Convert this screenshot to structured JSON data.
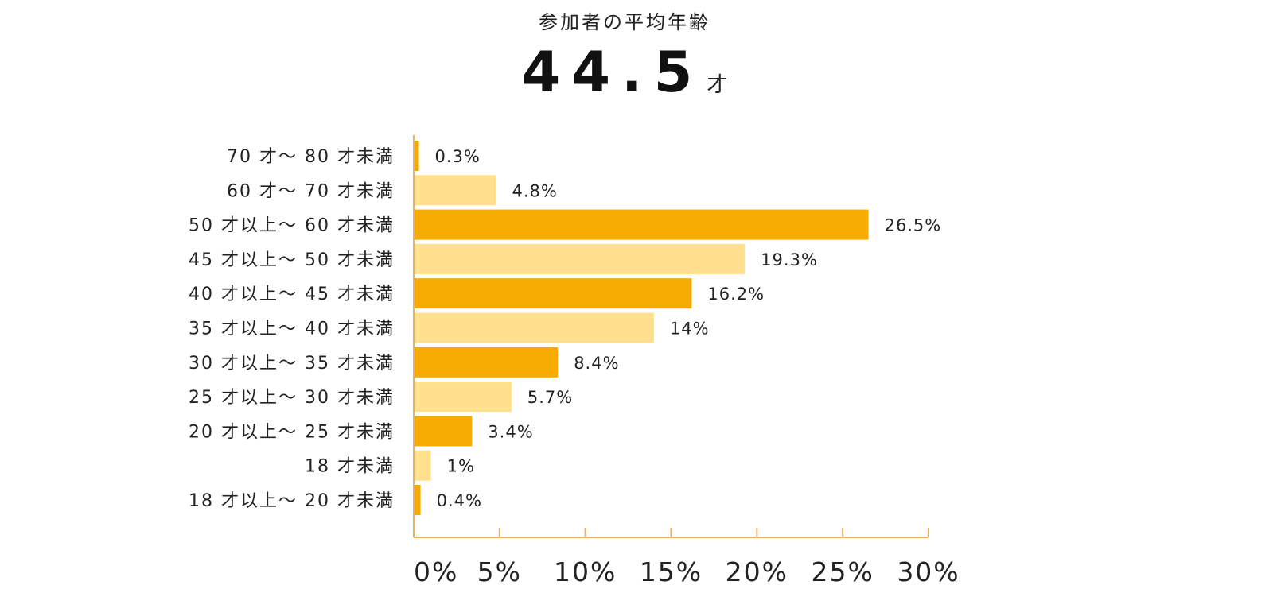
{
  "header": {
    "title": "参加者の平均年齢",
    "average_value": "44.5",
    "average_unit": "才"
  },
  "colors": {
    "dark": "#f5ab00",
    "light": "#ffe08c",
    "axis": "#e8b060"
  },
  "chart_data": {
    "type": "bar",
    "orientation": "horizontal",
    "categories": [
      "70 才～ 80 才未満",
      "60 才～ 70 才未満",
      "50 才以上～ 60 才未満",
      "45 才以上～ 50 才未満",
      "40 才以上～ 45 才未満",
      "35 才以上～ 40 才未満",
      "30 才以上～ 35 才未満",
      "25 才以上～ 30 才未満",
      "20 才以上～ 25 才未満",
      "18 才未満",
      "18 才以上～ 20 才未満"
    ],
    "values": [
      0.3,
      4.8,
      26.5,
      19.3,
      16.2,
      14,
      8.4,
      5.7,
      3.4,
      1,
      0.4
    ],
    "value_labels": [
      "0.3%",
      "4.8%",
      "26.5%",
      "19.3%",
      "16.2%",
      "14%",
      "8.4%",
      "5.7%",
      "3.4%",
      "1%",
      "0.4%"
    ],
    "x_ticks": [
      "0%",
      "5%",
      "10%",
      "15%",
      "20%",
      "25%",
      "30%"
    ],
    "xlim": [
      0,
      30
    ],
    "grid": false,
    "bar_colors": "alternating dark/light"
  }
}
